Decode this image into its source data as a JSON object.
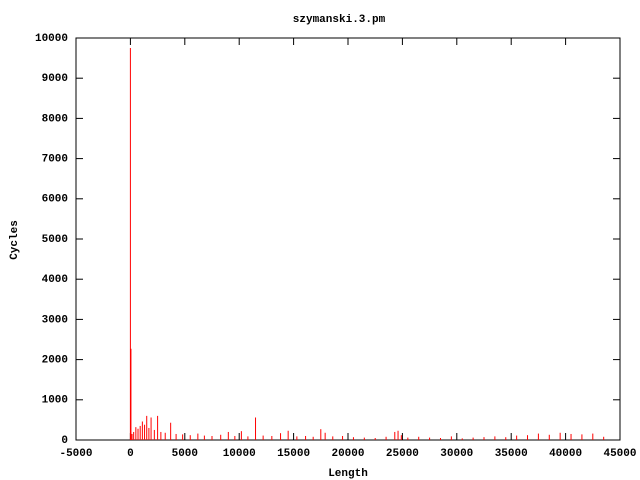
{
  "chart_data": {
    "type": "impulses",
    "title": "szymanski.3.pm",
    "x_label": "Length",
    "y_label": "Cycles",
    "x": [
      0,
      50,
      150,
      300,
      500,
      700,
      900,
      1100,
      1300,
      1500,
      1700,
      1900,
      2200,
      2500,
      2800,
      3200,
      3700,
      4200,
      4800,
      5500,
      6200,
      6800,
      7500,
      8300,
      9000,
      9600,
      10200,
      10800,
      11500,
      12200,
      13000,
      13800,
      14500,
      15300,
      16100,
      16800,
      17500,
      17900,
      18600,
      19500,
      20500,
      21500,
      22500,
      23500,
      24300,
      24600,
      24900,
      25500,
      26500,
      27500,
      28500,
      29500,
      30500,
      31500,
      32500,
      33500,
      34500,
      35500,
      36500,
      37500,
      38500,
      39500,
      40500,
      41500,
      42500,
      43500
    ],
    "values": [
      9750,
      2270,
      150,
      200,
      320,
      280,
      350,
      460,
      380,
      600,
      300,
      560,
      250,
      600,
      200,
      180,
      430,
      150,
      140,
      120,
      160,
      110,
      100,
      130,
      200,
      100,
      220,
      90,
      560,
      110,
      100,
      170,
      230,
      90,
      100,
      80,
      270,
      180,
      90,
      100,
      70,
      60,
      50,
      80,
      200,
      230,
      120,
      60,
      80,
      60,
      50,
      90,
      40,
      60,
      70,
      90,
      70,
      110,
      120,
      160,
      130,
      180,
      150,
      140,
      160,
      80
    ],
    "color": "#ff0000",
    "xlim": [
      -5000,
      45000
    ],
    "xticks": [
      -5000,
      0,
      5000,
      10000,
      15000,
      20000,
      25000,
      30000,
      35000,
      40000,
      45000
    ],
    "ylim": [
      0,
      10000
    ],
    "yticks": [
      0,
      1000,
      2000,
      3000,
      4000,
      5000,
      6000,
      7000,
      8000,
      9000,
      10000
    ]
  }
}
